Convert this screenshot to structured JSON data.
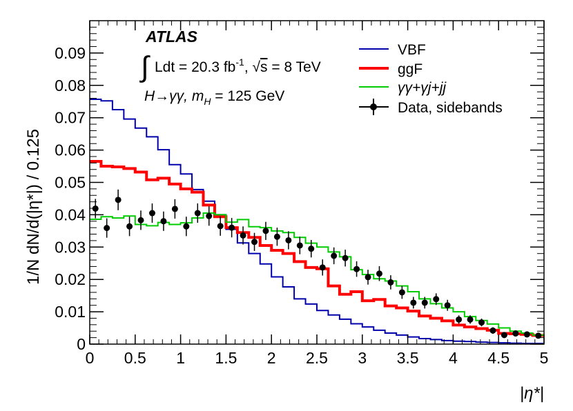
{
  "chart_data": {
    "type": "line",
    "subtype": "step-histogram",
    "ylabel": "1/N dN/d(|η*|) / 0.125",
    "xlabel": "|η*|",
    "xlim": [
      0,
      5
    ],
    "ylim": [
      0,
      0.1
    ],
    "x_ticks": [
      0,
      0.5,
      1,
      1.5,
      2,
      2.5,
      3,
      3.5,
      4,
      4.5,
      5
    ],
    "x_tick_labels": [
      "0",
      "0.5",
      "1",
      "1.5",
      "2",
      "2.5",
      "3",
      "3.5",
      "4",
      "4.5",
      "5"
    ],
    "y_ticks": [
      0,
      0.01,
      0.02,
      0.03,
      0.04,
      0.05,
      0.06,
      0.07,
      0.08,
      0.09
    ],
    "y_tick_labels": [
      "0",
      "0.01",
      "0.02",
      "0.03",
      "0.04",
      "0.05",
      "0.06",
      "0.07",
      "0.08",
      "0.09"
    ],
    "annotations": {
      "experiment": "ATLAS",
      "integral_sign": "∫",
      "lumi": "Ldt = 20.3 fb",
      "lumi_sup": "-1",
      "energy_prefix": ", √",
      "energy_s": "s",
      "energy_value": " = 8 TeV",
      "process": "H→γγ, ",
      "mass_m": "m",
      "mass_sub": "H",
      "mass_value": " = 125 GeV"
    },
    "bin_edges": [
      0,
      0.125,
      0.25,
      0.375,
      0.5,
      0.625,
      0.75,
      0.875,
      1.0,
      1.125,
      1.25,
      1.375,
      1.5,
      1.625,
      1.75,
      1.875,
      2.0,
      2.125,
      2.25,
      2.375,
      2.5,
      2.625,
      2.75,
      2.875,
      3.0,
      3.125,
      3.25,
      3.375,
      3.5,
      3.625,
      3.75,
      3.875,
      4.0,
      4.125,
      4.25,
      4.375,
      4.5,
      4.625,
      4.75,
      4.875,
      5.0
    ],
    "series": [
      {
        "name": "VBF",
        "color": "#0000aa",
        "style": "step",
        "values": [
          0.0757,
          0.0752,
          0.0725,
          0.0696,
          0.0668,
          0.0641,
          0.0601,
          0.0555,
          0.0526,
          0.0478,
          0.0442,
          0.04,
          0.0355,
          0.0313,
          0.028,
          0.0248,
          0.0208,
          0.0177,
          0.014,
          0.0124,
          0.0104,
          0.009,
          0.0077,
          0.0063,
          0.0053,
          0.0043,
          0.0034,
          0.0028,
          0.0022,
          0.0017,
          0.0014,
          0.0011,
          0.0009,
          0.0008,
          0.0006,
          0.0005,
          0.0004,
          0.0003,
          0.0002,
          0.0002
        ]
      },
      {
        "name": "ggF",
        "color": "#ff0000",
        "style": "step",
        "values": [
          0.0565,
          0.055,
          0.0548,
          0.0543,
          0.0532,
          0.0508,
          0.0513,
          0.0495,
          0.048,
          0.047,
          0.043,
          0.0394,
          0.036,
          0.0345,
          0.033,
          0.0305,
          0.029,
          0.028,
          0.0255,
          0.0237,
          0.0233,
          0.018,
          0.0154,
          0.0162,
          0.0134,
          0.0138,
          0.0118,
          0.0112,
          0.0102,
          0.0087,
          0.008,
          0.0072,
          0.0059,
          0.0053,
          0.0048,
          0.0043,
          0.0033,
          0.0032,
          0.003,
          0.0027
        ]
      },
      {
        "name": "γγ+γj+jj",
        "color": "#00cc00",
        "style": "step",
        "values": [
          0.0386,
          0.0394,
          0.039,
          0.0396,
          0.037,
          0.0366,
          0.0376,
          0.037,
          0.0375,
          0.039,
          0.0405,
          0.04,
          0.0377,
          0.0385,
          0.0363,
          0.036,
          0.035,
          0.0345,
          0.033,
          0.0312,
          0.03,
          0.0285,
          0.027,
          0.023,
          0.0215,
          0.0202,
          0.0195,
          0.018,
          0.0162,
          0.014,
          0.0125,
          0.0112,
          0.01,
          0.0085,
          0.0073,
          0.0062,
          0.005,
          0.004,
          0.0034,
          0.0028
        ]
      },
      {
        "name": "Data, sidebands",
        "color": "#000000",
        "style": "points",
        "values": [
          0.0419,
          0.0359,
          0.0446,
          0.0364,
          0.0383,
          0.0405,
          0.038,
          0.0418,
          0.0364,
          0.0405,
          0.0396,
          0.0365,
          0.036,
          0.0336,
          0.0316,
          0.035,
          0.0332,
          0.0321,
          0.0305,
          0.0295,
          0.0237,
          0.0273,
          0.0266,
          0.0232,
          0.0207,
          0.0218,
          0.0191,
          0.016,
          0.0128,
          0.0128,
          0.0139,
          0.012,
          0.0076,
          0.0076,
          0.0067,
          0.0042,
          0.0028,
          0.0033,
          0.003,
          0.0026
        ],
        "errors": [
          0.003,
          0.003,
          0.0032,
          0.003,
          0.003,
          0.003,
          0.003,
          0.003,
          0.003,
          0.003,
          0.003,
          0.003,
          0.003,
          0.0028,
          0.0028,
          0.0028,
          0.0028,
          0.0028,
          0.0027,
          0.0027,
          0.0025,
          0.0026,
          0.0026,
          0.0024,
          0.0023,
          0.0023,
          0.0022,
          0.002,
          0.0018,
          0.0018,
          0.0018,
          0.0017,
          0.0013,
          0.0013,
          0.0012,
          0.001,
          0.0008,
          0.0009,
          0.0008,
          0.0008
        ]
      }
    ],
    "legend": {
      "position": "top-right"
    }
  }
}
